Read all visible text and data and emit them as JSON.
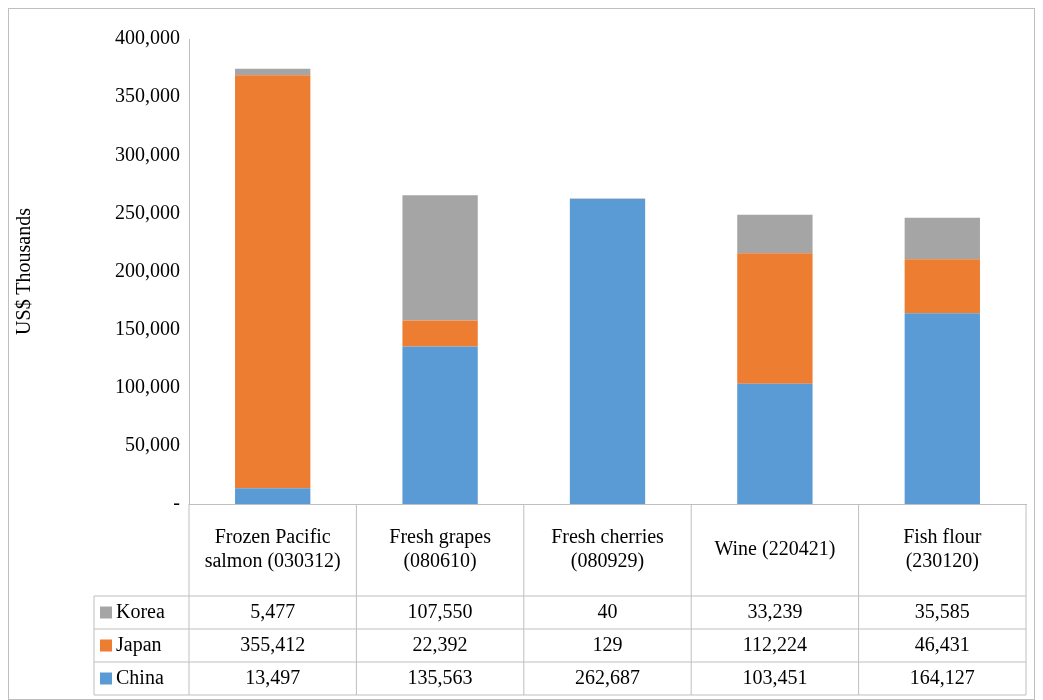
{
  "chart_data": {
    "type": "bar",
    "stacked": true,
    "ylabel": "US$ Thousands",
    "categories": [
      "Frozen Pacific salmon (030312)",
      "Fresh grapes (080610)",
      "Fresh cherries (080929)",
      "Wine (220421)",
      "Fish flour (230120)"
    ],
    "series": [
      {
        "name": "China",
        "color": "#5b9bd5",
        "values": [
          13497,
          135563,
          262687,
          103451,
          164127
        ],
        "value_labels": [
          "13,497",
          "135,563",
          "262,687",
          "103,451",
          "164,127"
        ]
      },
      {
        "name": "Japan",
        "color": "#ed7d31",
        "values": [
          355412,
          22392,
          129,
          112224,
          46431
        ],
        "value_labels": [
          "355,412",
          "22,392",
          "129",
          "112,224",
          "46,431"
        ]
      },
      {
        "name": "Korea",
        "color": "#a5a5a5",
        "values": [
          5477,
          107550,
          40,
          33239,
          35585
        ],
        "value_labels": [
          "5,477",
          "107,550",
          "40",
          "33,239",
          "35,585"
        ]
      }
    ],
    "ylim": [
      0,
      400000
    ],
    "yticks": [
      {
        "value": 0,
        "label": "-"
      },
      {
        "value": 50000,
        "label": "50,000"
      },
      {
        "value": 100000,
        "label": "100,000"
      },
      {
        "value": 150000,
        "label": "150,000"
      },
      {
        "value": 200000,
        "label": "200,000"
      },
      {
        "value": 250000,
        "label": "250,000"
      },
      {
        "value": 300000,
        "label": "300,000"
      },
      {
        "value": 350000,
        "label": "350,000"
      },
      {
        "value": 400000,
        "label": "400,000"
      }
    ],
    "grid": false,
    "legend": "bottom"
  }
}
